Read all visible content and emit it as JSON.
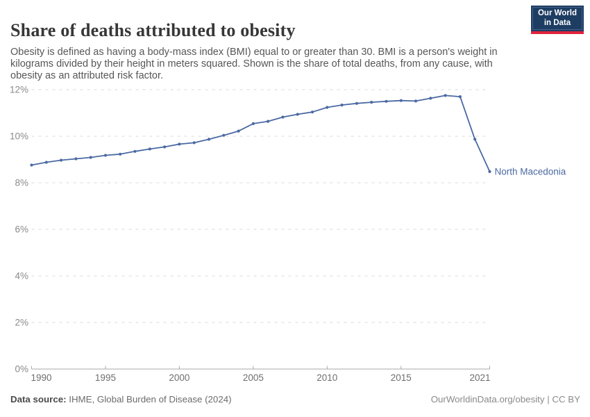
{
  "header": {
    "title": "Share of deaths attributed to obesity",
    "subtitle": "Obesity is defined as having a body-mass index (BMI) equal to or greater than 30. BMI is a person's weight in kilograms divided by their height in meters squared. Shown is the share of total deaths, from any cause, with obesity as an attributed risk factor.",
    "logo": {
      "line1": "Our World",
      "line2": "in Data"
    }
  },
  "chart_data": {
    "type": "line",
    "title": "Share of deaths attributed to obesity",
    "xlabel": "",
    "ylabel": "",
    "xlim": [
      1990,
      2021
    ],
    "ylim": [
      0,
      12
    ],
    "x_ticks": [
      1990,
      1995,
      2000,
      2005,
      2010,
      2015,
      2021
    ],
    "y_ticks": [
      0,
      2,
      4,
      6,
      8,
      10,
      12
    ],
    "y_tick_suffix": "%",
    "grid": "horizontal-dashed",
    "legend_position": "end-of-line-label",
    "series": [
      {
        "name": "North Macedonia",
        "color": "#4b69a3",
        "x": [
          1990,
          1991,
          1992,
          1993,
          1994,
          1995,
          1996,
          1997,
          1998,
          1999,
          2000,
          2001,
          2002,
          2003,
          2004,
          2005,
          2006,
          2007,
          2008,
          2009,
          2010,
          2011,
          2012,
          2013,
          2014,
          2015,
          2016,
          2017,
          2018,
          2019,
          2020,
          2021
        ],
        "values": [
          8.76,
          8.88,
          8.97,
          9.03,
          9.09,
          9.18,
          9.23,
          9.35,
          9.45,
          9.54,
          9.66,
          9.72,
          9.87,
          10.04,
          10.22,
          10.54,
          10.64,
          10.82,
          10.94,
          11.04,
          11.24,
          11.34,
          11.41,
          11.46,
          11.5,
          11.53,
          11.51,
          11.63,
          11.75,
          11.7,
          9.87,
          8.48
        ]
      }
    ]
  },
  "footer": {
    "source_label": "Data source:",
    "source_rest": " IHME, Global Burden of Disease (2024)",
    "right_text": "OurWorldinData.org/obesity | CC BY"
  },
  "colors": {
    "line": "#4b69a3",
    "grid": "#d9d9d9",
    "axis": "#a8a8a8",
    "y_label": "#8a8a8a",
    "x_label": "#6e6e6e",
    "title": "#373737",
    "subtitle": "#565656",
    "logo_bg": "#1d3d63",
    "logo_accent": "#e0233c"
  }
}
